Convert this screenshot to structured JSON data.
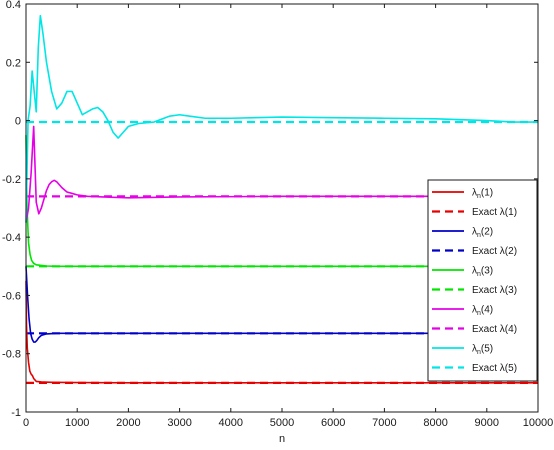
{
  "chart_data": {
    "type": "line",
    "title": "",
    "xlabel": "n",
    "ylabel": "",
    "xlim": [
      0,
      10000
    ],
    "ylim": [
      -1,
      0.4
    ],
    "xticks": [
      0,
      1000,
      2000,
      3000,
      4000,
      5000,
      6000,
      7000,
      8000,
      9000,
      10000
    ],
    "xtick_labels": [
      "0",
      "1000",
      "2000",
      "3000",
      "4000",
      "5000",
      "6000",
      "7000",
      "8000",
      "9000",
      "10000"
    ],
    "yticks": [
      -1,
      -0.8,
      -0.6,
      -0.4,
      -0.2,
      0,
      0.2,
      0.4
    ],
    "ytick_labels": [
      "-1",
      "-0.8",
      "-0.6",
      "-0.4",
      "-0.2",
      "0",
      "0.2",
      "0.4"
    ],
    "grid": false,
    "legend_position": "right",
    "series": [
      {
        "name": "λn(1)",
        "name_main": "λ",
        "name_sub": "n",
        "name_suffix": "(1)",
        "color": "#e60000",
        "style": "solid",
        "x": [
          0,
          10,
          25,
          50,
          75,
          100,
          125,
          150,
          175,
          200,
          300,
          500,
          1000,
          2000,
          5000,
          10000
        ],
        "y": [
          -0.55,
          -0.7,
          -0.78,
          -0.83,
          -0.86,
          -0.87,
          -0.875,
          -0.885,
          -0.89,
          -0.895,
          -0.897,
          -0.898,
          -0.899,
          -0.9,
          -0.9,
          -0.9
        ]
      },
      {
        "name": "Exact λ(1)",
        "name_main": "Exact λ",
        "name_sub": "",
        "name_suffix": "(1)",
        "color": "#e60000",
        "style": "dashed",
        "x": [
          0,
          10000
        ],
        "y": [
          -0.9,
          -0.9
        ]
      },
      {
        "name": "λn(2)",
        "name_main": "λ",
        "name_sub": "n",
        "name_suffix": "(2)",
        "color": "#0000c8",
        "style": "solid",
        "x": [
          0,
          30,
          60,
          90,
          120,
          150,
          180,
          210,
          250,
          300,
          400,
          600,
          1000,
          2000,
          5000,
          10000
        ],
        "y": [
          -0.5,
          -0.6,
          -0.68,
          -0.73,
          -0.75,
          -0.76,
          -0.76,
          -0.755,
          -0.745,
          -0.737,
          -0.732,
          -0.73,
          -0.73,
          -0.73,
          -0.73,
          -0.73
        ]
      },
      {
        "name": "Exact λ(2)",
        "name_main": "Exact λ",
        "name_sub": "",
        "name_suffix": "(2)",
        "color": "#0000c8",
        "style": "dashed",
        "x": [
          0,
          10000
        ],
        "y": [
          -0.73,
          -0.73
        ]
      },
      {
        "name": "λn(3)",
        "name_main": "λ",
        "name_sub": "n",
        "name_suffix": "(3)",
        "color": "#00e600",
        "style": "solid",
        "x": [
          0,
          20,
          50,
          80,
          110,
          150,
          200,
          300,
          400,
          600,
          1000,
          2000,
          4000,
          6000,
          8000,
          10000
        ],
        "y": [
          -0.05,
          -0.3,
          -0.42,
          -0.46,
          -0.48,
          -0.49,
          -0.495,
          -0.497,
          -0.499,
          -0.5,
          -0.5,
          -0.5,
          -0.5,
          -0.5,
          -0.5,
          -0.5
        ]
      },
      {
        "name": "Exact λ(3)",
        "name_main": "Exact λ",
        "name_sub": "",
        "name_suffix": "(3)",
        "color": "#00e600",
        "style": "dashed",
        "x": [
          0,
          10000
        ],
        "y": [
          -0.5,
          -0.5
        ]
      },
      {
        "name": "λn(4)",
        "name_main": "λ",
        "name_sub": "n",
        "name_suffix": "(4)",
        "color": "#e600e6",
        "style": "solid",
        "x": [
          0,
          50,
          100,
          150,
          200,
          250,
          300,
          350,
          400,
          450,
          500,
          550,
          600,
          700,
          800,
          900,
          1000,
          1200,
          1500,
          2000,
          3000,
          5000,
          8000,
          10000
        ],
        "y": [
          -0.35,
          -0.3,
          -0.18,
          -0.02,
          -0.28,
          -0.32,
          -0.3,
          -0.27,
          -0.24,
          -0.22,
          -0.21,
          -0.205,
          -0.21,
          -0.23,
          -0.245,
          -0.25,
          -0.255,
          -0.26,
          -0.262,
          -0.265,
          -0.262,
          -0.26,
          -0.26,
          -0.26
        ]
      },
      {
        "name": "Exact λ(4)",
        "name_main": "Exact λ",
        "name_sub": "",
        "name_suffix": "(4)",
        "color": "#e600e6",
        "style": "dashed",
        "x": [
          0,
          10000
        ],
        "y": [
          -0.26,
          -0.26
        ]
      },
      {
        "name": "λn(5)",
        "name_main": "λ",
        "name_sub": "n",
        "name_suffix": "(5)",
        "color": "#00e6e6",
        "style": "solid",
        "x": [
          0,
          40,
          80,
          120,
          160,
          200,
          240,
          280,
          330,
          400,
          500,
          600,
          700,
          800,
          900,
          1000,
          1100,
          1200,
          1300,
          1400,
          1500,
          1600,
          1700,
          1800,
          1900,
          2000,
          2200,
          2500,
          2800,
          3000,
          3200,
          3500,
          4000,
          5000,
          6000,
          7000,
          8000,
          9000,
          9500,
          10000
        ],
        "y": [
          -0.35,
          0.0,
          0.05,
          0.17,
          0.1,
          0.03,
          0.25,
          0.36,
          0.3,
          0.2,
          0.1,
          0.04,
          0.06,
          0.1,
          0.1,
          0.06,
          0.02,
          0.03,
          0.04,
          0.045,
          0.03,
          0.0,
          -0.04,
          -0.06,
          -0.04,
          -0.02,
          -0.01,
          -0.005,
          0.015,
          0.02,
          0.015,
          0.008,
          0.008,
          0.012,
          0.01,
          0.008,
          0.006,
          0.0,
          -0.005,
          -0.005
        ]
      },
      {
        "name": "Exact λ(5)",
        "name_main": "Exact λ",
        "name_sub": "",
        "name_suffix": "(5)",
        "color": "#00e6e6",
        "style": "dashed",
        "x": [
          0,
          10000
        ],
        "y": [
          -0.005,
          -0.005
        ]
      }
    ]
  }
}
